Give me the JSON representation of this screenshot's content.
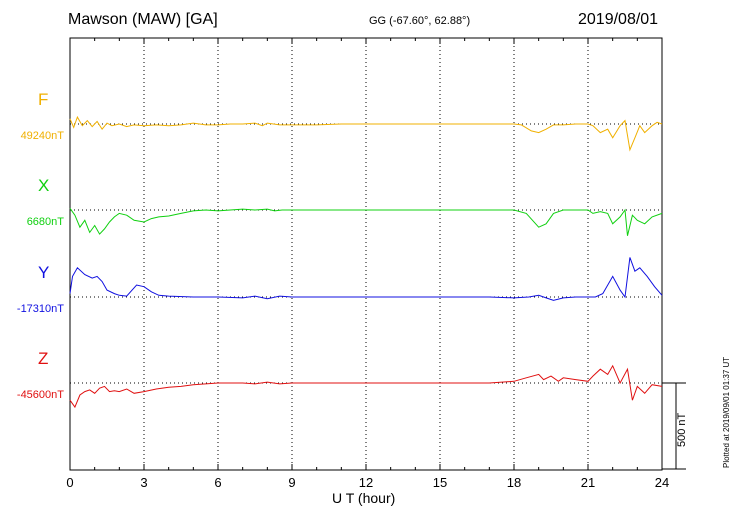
{
  "header": {
    "station": "Mawson (MAW)  [GA]",
    "coords": "GG (-67.60°,  62.88°)",
    "date": "2019/08/01"
  },
  "footer": {
    "plotted": "Plotted at 2019/09/01 01:37 UT"
  },
  "chart_data": {
    "type": "line",
    "xlabel": "U T (hour)",
    "xlim": [
      0,
      24
    ],
    "xticks": [
      0,
      3,
      6,
      9,
      12,
      15,
      18,
      21,
      24
    ],
    "scale_bar": {
      "value": 500,
      "label": "500 nT"
    },
    "series": [
      {
        "name": "F",
        "baseline_label": "49240nT",
        "color": "#f0b000",
        "points": [
          [
            0,
            30
          ],
          [
            0.15,
            -20
          ],
          [
            0.3,
            40
          ],
          [
            0.5,
            -10
          ],
          [
            0.7,
            20
          ],
          [
            0.9,
            -15
          ],
          [
            1.1,
            15
          ],
          [
            1.3,
            -30
          ],
          [
            1.5,
            5
          ],
          [
            1.7,
            -10
          ],
          [
            2,
            0
          ],
          [
            2.3,
            -15
          ],
          [
            2.6,
            -5
          ],
          [
            3,
            -10
          ],
          [
            3.5,
            -5
          ],
          [
            4,
            -10
          ],
          [
            4.5,
            -5
          ],
          [
            5,
            5
          ],
          [
            5.5,
            -5
          ],
          [
            6,
            -5
          ],
          [
            6.5,
            0
          ],
          [
            7,
            0
          ],
          [
            7.5,
            5
          ],
          [
            7.8,
            -10
          ],
          [
            8,
            5
          ],
          [
            8.5,
            -5
          ],
          [
            9,
            -5
          ],
          [
            10,
            -5
          ],
          [
            11,
            0
          ],
          [
            12,
            0
          ],
          [
            13,
            0
          ],
          [
            14,
            0
          ],
          [
            15,
            0
          ],
          [
            16,
            0
          ],
          [
            17,
            0
          ],
          [
            18,
            0
          ],
          [
            18.3,
            -5
          ],
          [
            18.7,
            -40
          ],
          [
            19,
            -50
          ],
          [
            19.3,
            -30
          ],
          [
            19.6,
            -5
          ],
          [
            20,
            -5
          ],
          [
            20.5,
            0
          ],
          [
            21,
            0
          ],
          [
            21.2,
            -10
          ],
          [
            21.5,
            -50
          ],
          [
            21.8,
            -30
          ],
          [
            22,
            -80
          ],
          [
            22.3,
            -10
          ],
          [
            22.5,
            20
          ],
          [
            22.7,
            -150
          ],
          [
            22.9,
            -80
          ],
          [
            23.1,
            -10
          ],
          [
            23.3,
            -50
          ],
          [
            23.6,
            -10
          ],
          [
            23.8,
            10
          ],
          [
            24,
            0
          ]
        ]
      },
      {
        "name": "X",
        "baseline_label": "6680nT",
        "color": "#10d010",
        "points": [
          [
            0,
            10
          ],
          [
            0.2,
            -30
          ],
          [
            0.4,
            -100
          ],
          [
            0.6,
            -60
          ],
          [
            0.8,
            -130
          ],
          [
            1,
            -90
          ],
          [
            1.2,
            -140
          ],
          [
            1.4,
            -110
          ],
          [
            1.6,
            -70
          ],
          [
            1.8,
            -40
          ],
          [
            2,
            -20
          ],
          [
            2.3,
            -30
          ],
          [
            2.6,
            -60
          ],
          [
            3,
            -70
          ],
          [
            3.3,
            -50
          ],
          [
            3.6,
            -40
          ],
          [
            4,
            -35
          ],
          [
            4.5,
            -20
          ],
          [
            5,
            -5
          ],
          [
            5.5,
            0
          ],
          [
            6,
            -5
          ],
          [
            6.5,
            0
          ],
          [
            7,
            5
          ],
          [
            7.5,
            0
          ],
          [
            8,
            5
          ],
          [
            8.3,
            -5
          ],
          [
            8.6,
            0
          ],
          [
            9,
            0
          ],
          [
            10,
            0
          ],
          [
            11,
            0
          ],
          [
            12,
            0
          ],
          [
            13,
            0
          ],
          [
            14,
            0
          ],
          [
            15,
            0
          ],
          [
            16,
            0
          ],
          [
            17,
            0
          ],
          [
            18,
            0
          ],
          [
            18.5,
            -20
          ],
          [
            19,
            -100
          ],
          [
            19.3,
            -80
          ],
          [
            19.6,
            -20
          ],
          [
            20,
            0
          ],
          [
            20.5,
            0
          ],
          [
            21,
            0
          ],
          [
            21.2,
            -20
          ],
          [
            21.5,
            -10
          ],
          [
            21.8,
            -20
          ],
          [
            22,
            -80
          ],
          [
            22.3,
            -40
          ],
          [
            22.5,
            0
          ],
          [
            22.6,
            -150
          ],
          [
            22.8,
            -30
          ],
          [
            23,
            -60
          ],
          [
            23.3,
            -80
          ],
          [
            23.6,
            -40
          ],
          [
            24,
            -20
          ]
        ]
      },
      {
        "name": "Y",
        "baseline_label": "-17310nT",
        "color": "#1010e0",
        "points": [
          [
            0,
            20
          ],
          [
            0.1,
            120
          ],
          [
            0.3,
            170
          ],
          [
            0.6,
            130
          ],
          [
            0.9,
            110
          ],
          [
            1.1,
            120
          ],
          [
            1.3,
            90
          ],
          [
            1.5,
            40
          ],
          [
            1.8,
            20
          ],
          [
            2,
            10
          ],
          [
            2.3,
            5
          ],
          [
            2.7,
            70
          ],
          [
            3,
            60
          ],
          [
            3.3,
            30
          ],
          [
            3.6,
            10
          ],
          [
            4,
            5
          ],
          [
            5,
            0
          ],
          [
            6,
            0
          ],
          [
            7,
            -5
          ],
          [
            7.5,
            5
          ],
          [
            8,
            -10
          ],
          [
            8.5,
            5
          ],
          [
            9,
            0
          ],
          [
            10,
            0
          ],
          [
            11,
            0
          ],
          [
            12,
            0
          ],
          [
            13,
            0
          ],
          [
            14,
            0
          ],
          [
            15,
            0
          ],
          [
            16,
            0
          ],
          [
            17,
            0
          ],
          [
            18,
            -5
          ],
          [
            18.6,
            0
          ],
          [
            19,
            10
          ],
          [
            19.3,
            -5
          ],
          [
            19.6,
            -20
          ],
          [
            20,
            -5
          ],
          [
            20.5,
            0
          ],
          [
            21,
            0
          ],
          [
            21.3,
            0
          ],
          [
            21.6,
            20
          ],
          [
            22,
            120
          ],
          [
            22.3,
            40
          ],
          [
            22.5,
            0
          ],
          [
            22.7,
            230
          ],
          [
            22.9,
            150
          ],
          [
            23.1,
            170
          ],
          [
            23.4,
            120
          ],
          [
            23.7,
            60
          ],
          [
            24,
            10
          ]
        ]
      },
      {
        "name": "Z",
        "baseline_label": "-45600nT",
        "color": "#e01010",
        "points": [
          [
            0,
            -100
          ],
          [
            0.2,
            -140
          ],
          [
            0.4,
            -70
          ],
          [
            0.6,
            -50
          ],
          [
            0.8,
            -40
          ],
          [
            1,
            -60
          ],
          [
            1.2,
            -30
          ],
          [
            1.4,
            -20
          ],
          [
            1.6,
            -50
          ],
          [
            1.8,
            -45
          ],
          [
            2,
            -50
          ],
          [
            2.3,
            -35
          ],
          [
            2.6,
            -60
          ],
          [
            3,
            -50
          ],
          [
            3.5,
            -35
          ],
          [
            4,
            -25
          ],
          [
            4.5,
            -20
          ],
          [
            5,
            -10
          ],
          [
            5.5,
            -5
          ],
          [
            6,
            0
          ],
          [
            7,
            0
          ],
          [
            7.5,
            -5
          ],
          [
            8,
            5
          ],
          [
            8.5,
            -5
          ],
          [
            9,
            0
          ],
          [
            10,
            0
          ],
          [
            11,
            0
          ],
          [
            12,
            0
          ],
          [
            13,
            0
          ],
          [
            14,
            0
          ],
          [
            15,
            0
          ],
          [
            16,
            0
          ],
          [
            17,
            0
          ],
          [
            18,
            10
          ],
          [
            18.5,
            30
          ],
          [
            19,
            50
          ],
          [
            19.2,
            20
          ],
          [
            19.5,
            40
          ],
          [
            19.8,
            10
          ],
          [
            20,
            30
          ],
          [
            20.5,
            20
          ],
          [
            21,
            10
          ],
          [
            21.2,
            40
          ],
          [
            21.5,
            80
          ],
          [
            21.8,
            50
          ],
          [
            22,
            100
          ],
          [
            22.3,
            0
          ],
          [
            22.6,
            80
          ],
          [
            22.8,
            -100
          ],
          [
            23,
            -20
          ],
          [
            23.3,
            -60
          ],
          [
            23.6,
            -10
          ],
          [
            24,
            -20
          ]
        ]
      }
    ]
  }
}
